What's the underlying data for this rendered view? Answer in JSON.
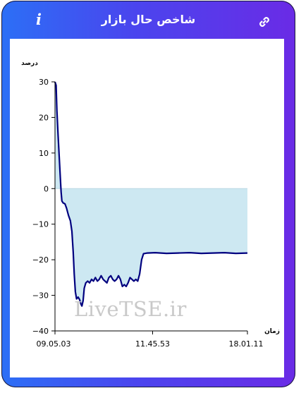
{
  "header": {
    "title": "شاخص حال بازار",
    "info_icon": "i"
  },
  "watermark": "LiveTSE.ir",
  "colors": {
    "line": "#00007f",
    "fill": "#cde8f2",
    "frame_start": "#2c6ff6",
    "frame_end": "#6a2be6"
  },
  "chart_data": {
    "type": "area",
    "ylabel": "درصد",
    "xlabel": "زمان",
    "ylim": [
      -40,
      30
    ],
    "yticks": [
      "30",
      "20",
      "10",
      "0",
      "−10",
      "−20",
      "−30",
      "−40"
    ],
    "xtick_labels": [
      "09.05.03",
      "11.45.53",
      "18.01.11"
    ],
    "series": [
      {
        "values": [
          [
            0,
            30
          ],
          [
            0.6,
            29
          ],
          [
            1,
            22
          ],
          [
            1.6,
            15
          ],
          [
            2.2,
            9
          ],
          [
            2.8,
            3
          ],
          [
            3.2,
            -1
          ],
          [
            3.6,
            -3.5
          ],
          [
            4.2,
            -4
          ],
          [
            5.2,
            -4.3
          ],
          [
            6,
            -5.5
          ],
          [
            7,
            -7.5
          ],
          [
            8,
            -9
          ],
          [
            8.8,
            -12
          ],
          [
            9.5,
            -18
          ],
          [
            10,
            -24
          ],
          [
            10.6,
            -29
          ],
          [
            11.2,
            -31
          ],
          [
            12,
            -30.5
          ],
          [
            12.8,
            -31.2
          ],
          [
            13.5,
            -32.5
          ],
          [
            14,
            -33
          ],
          [
            14.6,
            -31.5
          ],
          [
            15.2,
            -28
          ],
          [
            16,
            -26.5
          ],
          [
            17,
            -26
          ],
          [
            18,
            -26.5
          ],
          [
            19,
            -25.5
          ],
          [
            20,
            -26
          ],
          [
            21,
            -25
          ],
          [
            22,
            -26
          ],
          [
            23,
            -25.5
          ],
          [
            24,
            -24.5
          ],
          [
            25,
            -25.5
          ],
          [
            26,
            -26
          ],
          [
            27,
            -26.5
          ],
          [
            28,
            -25
          ],
          [
            29,
            -24.5
          ],
          [
            30,
            -25.5
          ],
          [
            31,
            -26
          ],
          [
            32,
            -25.5
          ],
          [
            33,
            -24.5
          ],
          [
            34,
            -25.5
          ],
          [
            35,
            -27.5
          ],
          [
            36,
            -27
          ],
          [
            37,
            -27.5
          ],
          [
            38,
            -26.5
          ],
          [
            39,
            -25
          ],
          [
            40,
            -25.5
          ],
          [
            41,
            -26
          ],
          [
            42,
            -25.5
          ],
          [
            43,
            -26
          ],
          [
            44,
            -24
          ],
          [
            45,
            -20
          ],
          [
            46,
            -18.3
          ],
          [
            48,
            -18.1
          ],
          [
            52,
            -18
          ],
          [
            58,
            -18.2
          ],
          [
            64,
            -18.1
          ],
          [
            70,
            -18
          ],
          [
            76,
            -18.2
          ],
          [
            82,
            -18.1
          ],
          [
            88,
            -18
          ],
          [
            94,
            -18.2
          ],
          [
            100,
            -18.1
          ]
        ]
      }
    ]
  }
}
